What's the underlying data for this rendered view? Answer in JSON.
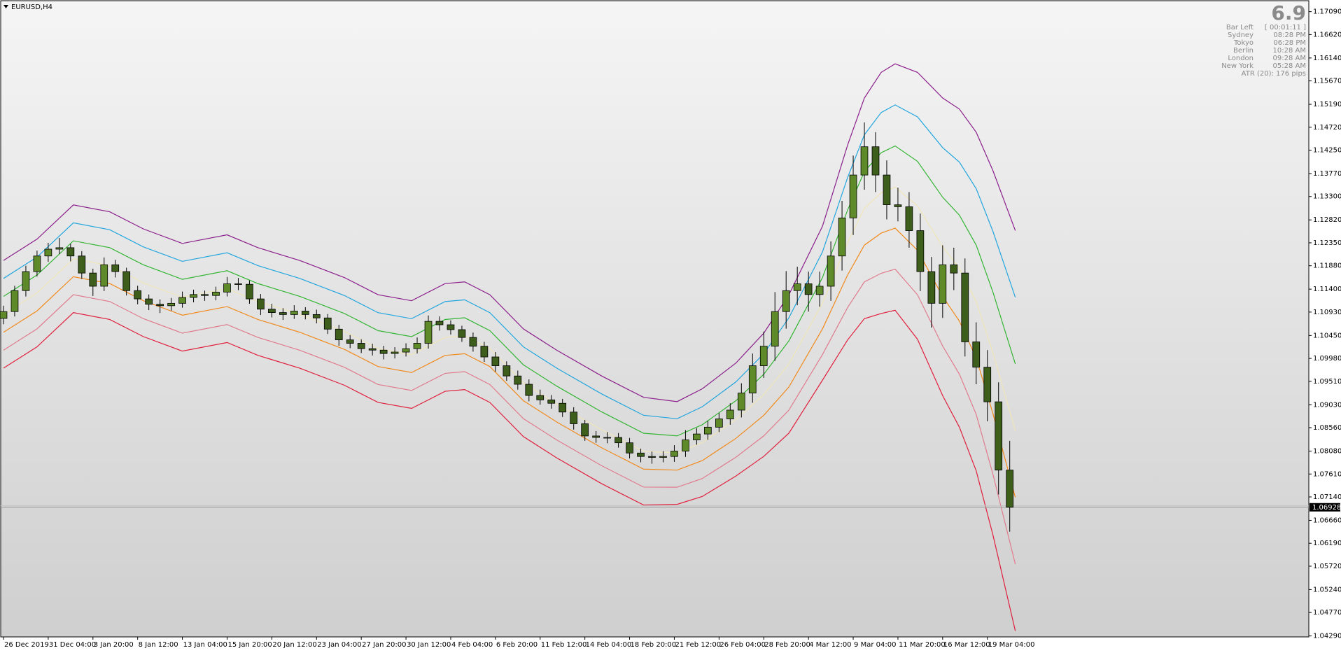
{
  "chart_data": {
    "type": "candlestick",
    "title": "EURUSD,H4",
    "x": [
      0,
      4,
      8,
      12,
      16,
      20,
      24,
      28,
      32,
      36,
      40,
      44,
      48,
      52,
      56,
      60,
      64,
      68,
      72,
      76,
      80,
      84,
      88,
      92,
      96,
      100,
      104,
      108,
      112,
      116,
      120,
      124,
      128,
      132,
      136,
      140,
      144,
      148,
      152,
      156,
      160,
      164,
      168,
      172,
      176,
      180,
      184,
      188,
      192,
      196,
      200,
      204,
      208,
      212,
      216,
      220,
      224,
      228,
      232,
      236,
      240,
      244,
      248,
      252,
      256,
      260,
      264,
      268,
      272,
      276,
      280,
      284,
      288,
      292,
      296,
      300,
      304,
      308,
      312,
      316,
      320,
      324,
      328,
      332,
      336,
      340,
      344,
      348,
      352,
      356,
      360
    ],
    "open": [
      1.108,
      1.1094,
      1.1137,
      1.1176,
      1.1208,
      1.1222,
      1.1225,
      1.1208,
      1.1173,
      1.1146,
      1.119,
      1.1176,
      1.1137,
      1.112,
      1.1109,
      1.1106,
      1.1111,
      1.1123,
      1.1129,
      1.1127,
      1.1134,
      1.1151,
      1.115,
      1.112,
      1.1099,
      1.1092,
      1.1088,
      1.1095,
      1.1088,
      1.1081,
      1.1058,
      1.1036,
      1.1029,
      1.1018,
      1.1015,
      1.1008,
      1.1011,
      1.1018,
      1.1029,
      1.1074,
      1.1067,
      1.1057,
      1.1041,
      1.1023,
      1.1001,
      1.0983,
      1.0962,
      1.0945,
      1.0922,
      1.0913,
      1.0906,
      1.0888,
      1.0864,
      1.0839,
      1.0836,
      1.0836,
      1.0825,
      1.0804,
      1.0797,
      1.0795,
      1.0797,
      1.0808,
      1.0831,
      1.0843,
      1.0857,
      1.0874,
      1.0892,
      1.0927,
      1.0983,
      1.1023,
      1.1094,
      1.1137,
      1.1151,
      1.1129,
      1.1146,
      1.1208,
      1.1286,
      1.1374,
      1.1432,
      1.1374,
      1.1313,
      1.1309,
      1.126,
      1.1176,
      1.1111,
      1.119,
      1.1173,
      1.1032,
      1.098,
      1.0909,
      1.0769
    ],
    "high": [
      1.1106,
      1.1147,
      1.1188,
      1.1219,
      1.1235,
      1.1245,
      1.1233,
      1.1218,
      1.1182,
      1.1205,
      1.12,
      1.1184,
      1.1147,
      1.1129,
      1.1119,
      1.1122,
      1.1135,
      1.1139,
      1.1137,
      1.1145,
      1.1165,
      1.1163,
      1.1158,
      1.113,
      1.111,
      1.1101,
      1.1107,
      1.1103,
      1.1098,
      1.1089,
      1.1067,
      1.1046,
      1.1037,
      1.1028,
      1.1024,
      1.1021,
      1.1029,
      1.1041,
      1.1086,
      1.1084,
      1.1076,
      1.1065,
      1.1051,
      1.1032,
      1.1011,
      1.0992,
      1.0973,
      1.0955,
      1.0934,
      1.0923,
      1.0915,
      1.0898,
      1.0872,
      1.0849,
      1.0847,
      1.0845,
      1.0835,
      1.0813,
      1.0807,
      1.0808,
      1.082,
      1.0851,
      1.0855,
      1.087,
      1.0886,
      1.0906,
      1.0947,
      1.1008,
      1.1053,
      1.1134,
      1.1177,
      1.1186,
      1.1176,
      1.1176,
      1.1238,
      1.1321,
      1.1414,
      1.1482,
      1.1462,
      1.1404,
      1.1348,
      1.1339,
      1.1295,
      1.1206,
      1.123,
      1.1225,
      1.1203,
      1.1072,
      1.1015,
      1.0949,
      1.0829
    ],
    "low": [
      1.1068,
      1.1084,
      1.1125,
      1.1166,
      1.1196,
      1.1212,
      1.1197,
      1.1161,
      1.1126,
      1.1136,
      1.1164,
      1.1127,
      1.1109,
      1.1097,
      1.1091,
      1.1096,
      1.1102,
      1.1113,
      1.1116,
      1.1117,
      1.1125,
      1.1138,
      1.111,
      1.1087,
      1.1082,
      1.1077,
      1.1079,
      1.1078,
      1.107,
      1.1048,
      1.1024,
      1.1019,
      1.1009,
      1.1004,
      1.0996,
      1.0998,
      1.1002,
      1.1008,
      1.1018,
      1.1055,
      1.1047,
      1.1032,
      1.1012,
      1.0991,
      1.0971,
      1.0952,
      1.0934,
      1.091,
      1.0903,
      1.0895,
      1.0878,
      1.0852,
      1.0829,
      1.0825,
      1.0824,
      1.0815,
      1.0793,
      1.0785,
      1.0782,
      1.0785,
      1.0786,
      1.0796,
      1.0821,
      1.0831,
      1.0847,
      1.0862,
      1.0877,
      1.0907,
      1.0958,
      1.0993,
      1.1059,
      1.1107,
      1.1094,
      1.1104,
      1.1116,
      1.1178,
      1.1251,
      1.1344,
      1.1339,
      1.1283,
      1.1279,
      1.1225,
      1.1136,
      1.1061,
      1.1081,
      1.1138,
      1.1002,
      1.0945,
      1.0869,
      1.0719,
      1.06428
    ],
    "close": [
      1.1094,
      1.1137,
      1.1176,
      1.1208,
      1.1222,
      1.1225,
      1.1208,
      1.1173,
      1.1146,
      1.119,
      1.1176,
      1.1137,
      1.112,
      1.1109,
      1.1106,
      1.1111,
      1.1123,
      1.1129,
      1.1127,
      1.1134,
      1.1151,
      1.115,
      1.112,
      1.1099,
      1.1092,
      1.1088,
      1.1095,
      1.1088,
      1.1081,
      1.1058,
      1.1036,
      1.1029,
      1.1018,
      1.1015,
      1.1008,
      1.1011,
      1.1018,
      1.1029,
      1.1074,
      1.1067,
      1.1057,
      1.1041,
      1.1023,
      1.1001,
      1.0983,
      1.0962,
      1.0945,
      1.0922,
      1.0913,
      1.0906,
      1.0888,
      1.0864,
      1.0839,
      1.0836,
      1.0836,
      1.0825,
      1.0804,
      1.0797,
      1.0795,
      1.0797,
      1.0808,
      1.0831,
      1.0843,
      1.0857,
      1.0874,
      1.0892,
      1.0927,
      1.0983,
      1.1023,
      1.1094,
      1.1137,
      1.1151,
      1.1129,
      1.1146,
      1.1208,
      1.1286,
      1.1374,
      1.1432,
      1.1374,
      1.1313,
      1.1309,
      1.126,
      1.1176,
      1.1111,
      1.119,
      1.1173,
      1.1032,
      1.098,
      1.0909,
      1.0769,
      1.06928
    ],
    "up_color": "#5f8a2a",
    "down_color": "#3e5e1b",
    "wick_color": "#000000",
    "line_x": [
      0,
      12,
      25,
      38,
      50,
      64,
      80,
      91,
      106,
      122,
      134,
      146,
      158,
      165,
      174,
      186,
      198,
      214,
      229,
      241,
      250,
      262,
      272,
      281,
      293,
      302,
      308,
      314,
      319,
      327,
      336,
      342,
      348,
      354,
      362
    ],
    "lines": [
      {
        "color": "#8b1f8b",
        "values": [
          1.11988,
          1.12426,
          1.13127,
          1.12987,
          1.12636,
          1.12338,
          1.12514,
          1.12251,
          1.11988,
          1.11637,
          1.11286,
          1.11163,
          1.11514,
          1.11549,
          1.11286,
          1.10585,
          1.10146,
          1.0962,
          1.09182,
          1.09094,
          1.09357,
          1.09883,
          1.10497,
          1.11286,
          1.12689,
          1.14355,
          1.15319,
          1.15845,
          1.1602,
          1.15845,
          1.15319,
          1.15091,
          1.14618,
          1.13829,
          1.12601
        ]
      },
      {
        "color": "#22a6de",
        "values": [
          1.1162,
          1.12058,
          1.12759,
          1.12619,
          1.12268,
          1.1197,
          1.12146,
          1.11883,
          1.1162,
          1.11269,
          1.10918,
          1.10795,
          1.11146,
          1.11181,
          1.10918,
          1.10217,
          1.09778,
          1.09252,
          1.08814,
          1.08743,
          1.08989,
          1.09497,
          1.10076,
          1.10813,
          1.12163,
          1.13689,
          1.14565,
          1.15021,
          1.15178,
          1.14933,
          1.14302,
          1.14004,
          1.13461,
          1.12584,
          1.11233
        ]
      },
      {
        "color": "#33b533",
        "values": [
          1.11252,
          1.1169,
          1.12391,
          1.12251,
          1.119,
          1.11602,
          1.11778,
          1.11515,
          1.11252,
          1.10901,
          1.1055,
          1.10427,
          1.10778,
          1.10813,
          1.1055,
          1.09849,
          1.0941,
          1.08884,
          1.08446,
          1.08392,
          1.08621,
          1.09111,
          1.09655,
          1.1034,
          1.11637,
          1.13023,
          1.13811,
          1.14197,
          1.14336,
          1.14021,
          1.13285,
          1.12917,
          1.12304,
          1.11339,
          1.09865
        ]
      },
      {
        "color": "#efe6b8",
        "values": [
          1.10884,
          1.11322,
          1.12023,
          1.11883,
          1.11532,
          1.11234,
          1.1141,
          1.11147,
          1.10884,
          1.10533,
          1.10182,
          1.10059,
          1.1041,
          1.10445,
          1.10182,
          1.09481,
          1.09042,
          1.08516,
          1.08078,
          1.08041,
          1.08253,
          1.08725,
          1.09234,
          1.09867,
          1.11111,
          1.12357,
          1.13057,
          1.13373,
          1.13494,
          1.13109,
          1.12268,
          1.1183,
          1.11147,
          1.10094,
          1.08497
        ]
      },
      {
        "color": "#f08a1c",
        "values": [
          1.10516,
          1.10954,
          1.11655,
          1.11515,
          1.11164,
          1.10866,
          1.11042,
          1.10779,
          1.10516,
          1.10165,
          1.09814,
          1.09691,
          1.10042,
          1.10077,
          1.09814,
          1.09113,
          1.08674,
          1.08148,
          1.0771,
          1.0769,
          1.07885,
          1.08339,
          1.08813,
          1.09394,
          1.10585,
          1.11691,
          1.12303,
          1.12549,
          1.12652,
          1.12197,
          1.11251,
          1.10743,
          1.0999,
          1.08849,
          1.07129
        ]
      },
      {
        "color": "#e07b8e",
        "values": [
          1.10148,
          1.10586,
          1.11287,
          1.11147,
          1.10796,
          1.10498,
          1.10674,
          1.10411,
          1.10148,
          1.09797,
          1.09446,
          1.09323,
          1.09674,
          1.09709,
          1.09446,
          1.08745,
          1.08306,
          1.0778,
          1.07342,
          1.07339,
          1.07517,
          1.07953,
          1.08392,
          1.08921,
          1.10059,
          1.11025,
          1.11549,
          1.11725,
          1.1181,
          1.11285,
          1.10234,
          1.09656,
          1.08833,
          1.07604,
          1.05761
        ]
      },
      {
        "color": "#e01f3d",
        "values": [
          1.0978,
          1.10218,
          1.10919,
          1.10779,
          1.10428,
          1.1013,
          1.10306,
          1.10043,
          1.0978,
          1.09429,
          1.09078,
          1.08955,
          1.09306,
          1.09341,
          1.09078,
          1.08377,
          1.07938,
          1.07412,
          1.06974,
          1.06988,
          1.07149,
          1.07567,
          1.07971,
          1.08448,
          1.09533,
          1.10359,
          1.10795,
          1.10901,
          1.10968,
          1.10373,
          1.09217,
          1.08569,
          1.07676,
          1.06359,
          1.04393
        ]
      }
    ],
    "xlim": [
      -1,
      467
    ],
    "xticks": [
      {
        "value": 0,
        "label": "26 Dec 2019"
      },
      {
        "value": 16,
        "label": "31 Dec 04:00"
      },
      {
        "value": 32,
        "label": "3 Jan 20:00"
      },
      {
        "value": 48,
        "label": "8 Jan 12:00"
      },
      {
        "value": 64,
        "label": "13 Jan 04:00"
      },
      {
        "value": 80,
        "label": "15 Jan 20:00"
      },
      {
        "value": 96,
        "label": "20 Jan 12:00"
      },
      {
        "value": 112,
        "label": "23 Jan 04:00"
      },
      {
        "value": 128,
        "label": "27 Jan 20:00"
      },
      {
        "value": 144,
        "label": "30 Jan 12:00"
      },
      {
        "value": 160,
        "label": "4 Feb 04:00"
      },
      {
        "value": 176,
        "label": "6 Feb 20:00"
      },
      {
        "value": 192,
        "label": "11 Feb 12:00"
      },
      {
        "value": 208,
        "label": "14 Feb 04:00"
      },
      {
        "value": 224,
        "label": "18 Feb 20:00"
      },
      {
        "value": 240,
        "label": "21 Feb 12:00"
      },
      {
        "value": 256,
        "label": "26 Feb 04:00"
      },
      {
        "value": 272,
        "label": "28 Feb 20:00"
      },
      {
        "value": 288,
        "label": "4 Mar 12:00"
      },
      {
        "value": 304,
        "label": "9 Mar 04:00"
      },
      {
        "value": 320,
        "label": "11 Mar 20:00"
      },
      {
        "value": 336,
        "label": "16 Mar 12:00"
      },
      {
        "value": 352,
        "label": "19 Mar 04:00"
      }
    ],
    "ylim": [
      1.0427,
      1.173
    ],
    "yticks": [
      {
        "value": 1.1709,
        "label": "1.17090"
      },
      {
        "value": 1.1662,
        "label": "1.16620"
      },
      {
        "value": 1.1614,
        "label": "1.16140"
      },
      {
        "value": 1.1567,
        "label": "1.15670"
      },
      {
        "value": 1.1519,
        "label": "1.15190"
      },
      {
        "value": 1.1472,
        "label": "1.14720"
      },
      {
        "value": 1.1425,
        "label": "1.14250"
      },
      {
        "value": 1.1377,
        "label": "1.13770"
      },
      {
        "value": 1.133,
        "label": "1.13300"
      },
      {
        "value": 1.1282,
        "label": "1.12820"
      },
      {
        "value": 1.1235,
        "label": "1.12350"
      },
      {
        "value": 1.1188,
        "label": "1.11880"
      },
      {
        "value": 1.114,
        "label": "1.11400"
      },
      {
        "value": 1.1093,
        "label": "1.10930"
      },
      {
        "value": 1.1045,
        "label": "1.10450"
      },
      {
        "value": 1.0998,
        "label": "1.09980"
      },
      {
        "value": 1.0951,
        "label": "1.09510"
      },
      {
        "value": 1.0903,
        "label": "1.09030"
      },
      {
        "value": 1.0856,
        "label": "1.08560"
      },
      {
        "value": 1.0808,
        "label": "1.08080"
      },
      {
        "value": 1.0761,
        "label": "1.07610"
      },
      {
        "value": 1.0714,
        "label": "1.07140"
      },
      {
        "value": 1.0666,
        "label": "1.06660"
      },
      {
        "value": 1.0619,
        "label": "1.06190"
      },
      {
        "value": 1.0572,
        "label": "1.05720"
      },
      {
        "value": 1.0524,
        "label": "1.05240"
      },
      {
        "value": 1.0477,
        "label": "1.04770"
      },
      {
        "value": 1.0429,
        "label": "1.04290"
      }
    ],
    "current_price": {
      "value": 1.06928,
      "label": "1.06928"
    },
    "grid": false,
    "info": {
      "headline": "6.9",
      "rows": [
        [
          "Bar Left",
          "[ 00:01:11 ]"
        ],
        [
          "Sydney",
          "08:28 PM"
        ],
        [
          "Tokyo",
          "06:28 PM"
        ],
        [
          "Berlin",
          "10:28 AM"
        ],
        [
          "London",
          "09:28 AM"
        ],
        [
          "New York",
          "05:28 AM"
        ]
      ],
      "atr": "ATR (20): 176 pips"
    }
  }
}
